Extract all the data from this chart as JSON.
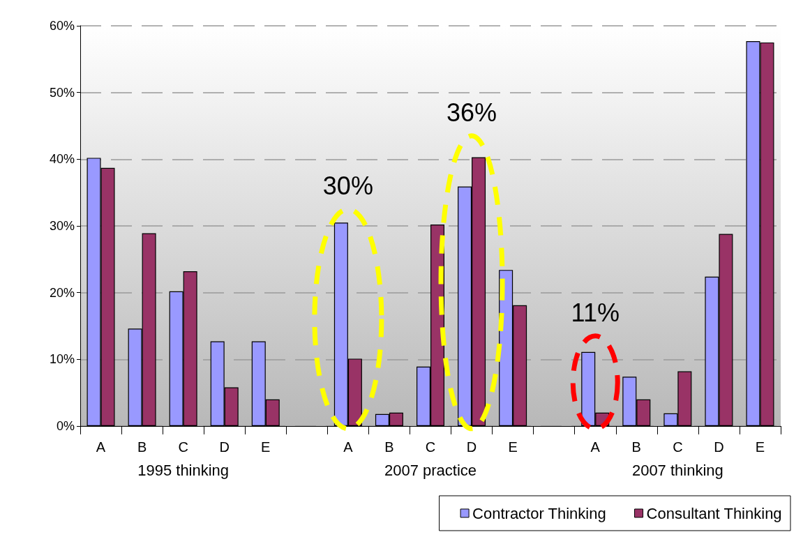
{
  "chart_data": {
    "type": "bar",
    "categories": [
      "A",
      "B",
      "C",
      "D",
      "E",
      null,
      "A",
      "B",
      "C",
      "D",
      "E",
      null,
      "A",
      "B",
      "C",
      "D",
      "E"
    ],
    "series": [
      {
        "name": "Contractor Thinking",
        "color": "#9999ff",
        "values": [
          40.2,
          14.6,
          20.2,
          12.7,
          12.7,
          null,
          30.5,
          1.8,
          8.9,
          35.9,
          23.4,
          null,
          11.1,
          7.4,
          1.9,
          22.4,
          57.7
        ]
      },
      {
        "name": "Consultant Thinking",
        "color": "#993366",
        "values": [
          38.7,
          28.9,
          23.2,
          5.8,
          4.0,
          null,
          10.1,
          2.0,
          30.2,
          40.3,
          18.1,
          null,
          2.0,
          4.0,
          8.2,
          28.8,
          57.5
        ]
      }
    ],
    "ylim": [
      0,
      60
    ],
    "yticks": [
      {
        "value": 0,
        "label": "0%"
      },
      {
        "value": 10,
        "label": "10%"
      },
      {
        "value": 20,
        "label": "20%"
      },
      {
        "value": 30,
        "label": "30%"
      },
      {
        "value": 40,
        "label": "40%"
      },
      {
        "value": 50,
        "label": "50%"
      },
      {
        "value": 60,
        "label": "60%"
      }
    ],
    "grid": "y",
    "legend": "bottom right",
    "annotations": [
      "1995 thinking",
      "2007 practice",
      "2007 thinking",
      "30%",
      "36%",
      "11%"
    ]
  }
}
